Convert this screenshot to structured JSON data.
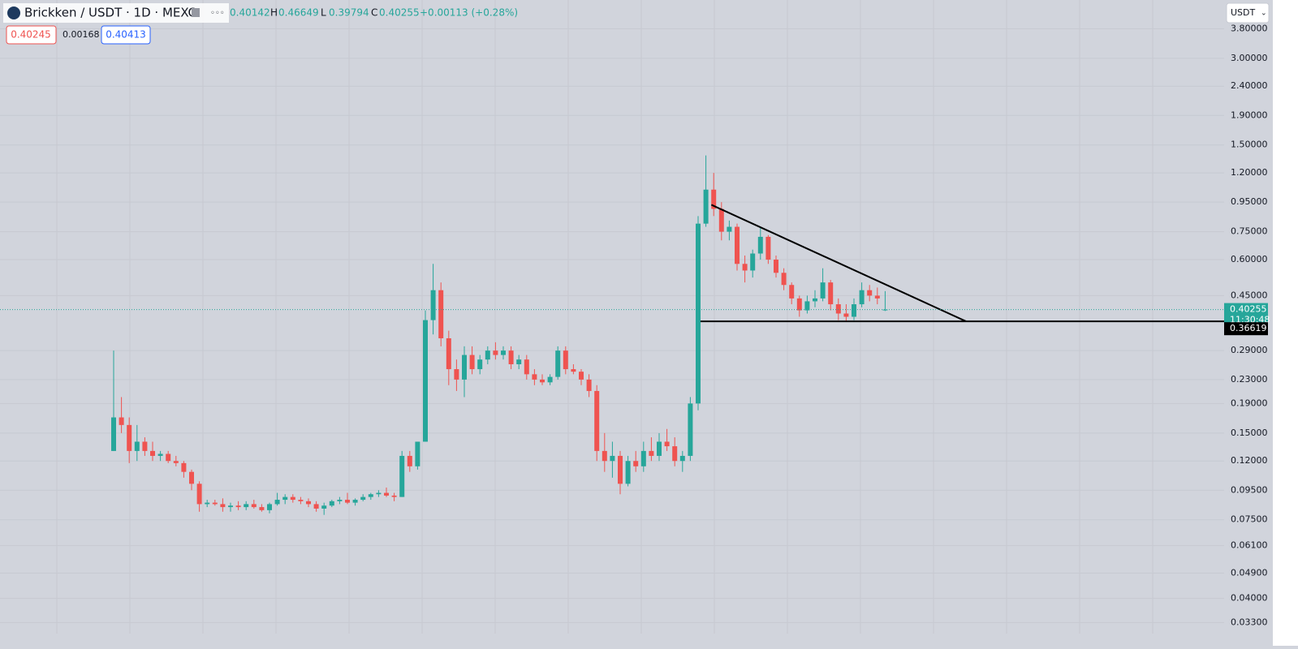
{
  "header": {
    "symbol": "Brickken / USDT · 1D · MEXC",
    "ohlc": [
      {
        "label": "H",
        "value": "0.46649"
      },
      {
        "label": "L",
        "value": "0.39794"
      },
      {
        "label": "C",
        "value": "0.40255"
      }
    ],
    "open": "0.40142",
    "change": "+0.00113 (+0.28%)",
    "bid": "0.40245",
    "spread": "0.00168",
    "ask": "0.40413",
    "currency": "USDT"
  },
  "chart_data": {
    "type": "candlestick",
    "log_scale": true,
    "grid": true,
    "up_color": "#26a69a",
    "down_color": "#ef5350",
    "ylim": [
      0.0302,
      4.78
    ],
    "yticks": [
      {
        "value": 3.8,
        "label": "3.80000"
      },
      {
        "value": 3.0,
        "label": "3.00000"
      },
      {
        "value": 2.4,
        "label": "2.40000"
      },
      {
        "value": 1.9,
        "label": "1.90000"
      },
      {
        "value": 1.5,
        "label": "1.50000"
      },
      {
        "value": 1.2,
        "label": "1.20000"
      },
      {
        "value": 0.95,
        "label": "0.95000"
      },
      {
        "value": 0.75,
        "label": "0.75000"
      },
      {
        "value": 0.6,
        "label": "0.60000"
      },
      {
        "value": 0.45,
        "label": "0.45000"
      },
      {
        "value": 0.29,
        "label": "0.29000"
      },
      {
        "value": 0.23,
        "label": "0.23000"
      },
      {
        "value": 0.19,
        "label": "0.19000"
      },
      {
        "value": 0.15,
        "label": "0.15000"
      },
      {
        "value": 0.12,
        "label": "0.12000"
      },
      {
        "value": 0.095,
        "label": "0.09500"
      },
      {
        "value": 0.075,
        "label": "0.07500"
      },
      {
        "value": 0.061,
        "label": "0.06100"
      },
      {
        "value": 0.049,
        "label": "0.04900"
      },
      {
        "value": 0.04,
        "label": "0.04000"
      },
      {
        "value": 0.033,
        "label": "0.03300"
      }
    ],
    "ohlc": [
      [
        0.13,
        0.29,
        0.13,
        0.17
      ],
      [
        0.17,
        0.2,
        0.15,
        0.16
      ],
      [
        0.16,
        0.17,
        0.118,
        0.13
      ],
      [
        0.13,
        0.16,
        0.12,
        0.14
      ],
      [
        0.14,
        0.145,
        0.125,
        0.13
      ],
      [
        0.13,
        0.14,
        0.12,
        0.125
      ],
      [
        0.125,
        0.13,
        0.12,
        0.127
      ],
      [
        0.127,
        0.13,
        0.118,
        0.12
      ],
      [
        0.12,
        0.125,
        0.115,
        0.118
      ],
      [
        0.118,
        0.12,
        0.105,
        0.11
      ],
      [
        0.11,
        0.112,
        0.095,
        0.1
      ],
      [
        0.1,
        0.102,
        0.08,
        0.085
      ],
      [
        0.085,
        0.088,
        0.083,
        0.086
      ],
      [
        0.086,
        0.088,
        0.084,
        0.085
      ],
      [
        0.085,
        0.089,
        0.08,
        0.083
      ],
      [
        0.083,
        0.086,
        0.08,
        0.084
      ],
      [
        0.084,
        0.087,
        0.081,
        0.083
      ],
      [
        0.083,
        0.087,
        0.081,
        0.085
      ],
      [
        0.085,
        0.088,
        0.082,
        0.083
      ],
      [
        0.083,
        0.085,
        0.08,
        0.081
      ],
      [
        0.081,
        0.086,
        0.079,
        0.085
      ],
      [
        0.085,
        0.093,
        0.084,
        0.088
      ],
      [
        0.088,
        0.092,
        0.085,
        0.09
      ],
      [
        0.09,
        0.092,
        0.086,
        0.088
      ],
      [
        0.088,
        0.09,
        0.085,
        0.087
      ],
      [
        0.087,
        0.089,
        0.083,
        0.085
      ],
      [
        0.085,
        0.087,
        0.08,
        0.082
      ],
      [
        0.082,
        0.086,
        0.078,
        0.084
      ],
      [
        0.084,
        0.088,
        0.083,
        0.087
      ],
      [
        0.087,
        0.09,
        0.085,
        0.088
      ],
      [
        0.088,
        0.093,
        0.085,
        0.086
      ],
      [
        0.086,
        0.089,
        0.084,
        0.088
      ],
      [
        0.088,
        0.092,
        0.087,
        0.09
      ],
      [
        0.09,
        0.093,
        0.088,
        0.092
      ],
      [
        0.092,
        0.095,
        0.09,
        0.093
      ],
      [
        0.093,
        0.097,
        0.09,
        0.091
      ],
      [
        0.091,
        0.093,
        0.087,
        0.09
      ],
      [
        0.09,
        0.13,
        0.09,
        0.125
      ],
      [
        0.125,
        0.13,
        0.11,
        0.115
      ],
      [
        0.115,
        0.14,
        0.112,
        0.14
      ],
      [
        0.14,
        0.4,
        0.14,
        0.37
      ],
      [
        0.37,
        0.58,
        0.33,
        0.47
      ],
      [
        0.47,
        0.5,
        0.3,
        0.32
      ],
      [
        0.32,
        0.34,
        0.22,
        0.25
      ],
      [
        0.25,
        0.27,
        0.21,
        0.23
      ],
      [
        0.23,
        0.3,
        0.2,
        0.28
      ],
      [
        0.28,
        0.3,
        0.24,
        0.25
      ],
      [
        0.25,
        0.28,
        0.24,
        0.27
      ],
      [
        0.27,
        0.3,
        0.26,
        0.29
      ],
      [
        0.29,
        0.31,
        0.27,
        0.28
      ],
      [
        0.28,
        0.3,
        0.27,
        0.29
      ],
      [
        0.29,
        0.3,
        0.25,
        0.26
      ],
      [
        0.26,
        0.28,
        0.25,
        0.27
      ],
      [
        0.27,
        0.28,
        0.23,
        0.24
      ],
      [
        0.24,
        0.25,
        0.22,
        0.23
      ],
      [
        0.23,
        0.24,
        0.22,
        0.225
      ],
      [
        0.225,
        0.24,
        0.22,
        0.235
      ],
      [
        0.235,
        0.3,
        0.23,
        0.29
      ],
      [
        0.29,
        0.3,
        0.24,
        0.25
      ],
      [
        0.25,
        0.26,
        0.24,
        0.245
      ],
      [
        0.245,
        0.25,
        0.22,
        0.23
      ],
      [
        0.23,
        0.24,
        0.2,
        0.21
      ],
      [
        0.21,
        0.22,
        0.12,
        0.13
      ],
      [
        0.13,
        0.15,
        0.11,
        0.12
      ],
      [
        0.12,
        0.14,
        0.105,
        0.125
      ],
      [
        0.125,
        0.13,
        0.092,
        0.1
      ],
      [
        0.1,
        0.125,
        0.098,
        0.12
      ],
      [
        0.12,
        0.13,
        0.11,
        0.115
      ],
      [
        0.115,
        0.14,
        0.11,
        0.13
      ],
      [
        0.13,
        0.145,
        0.12,
        0.125
      ],
      [
        0.125,
        0.15,
        0.12,
        0.14
      ],
      [
        0.14,
        0.155,
        0.13,
        0.135
      ],
      [
        0.135,
        0.145,
        0.115,
        0.12
      ],
      [
        0.12,
        0.13,
        0.11,
        0.125
      ],
      [
        0.125,
        0.2,
        0.12,
        0.19
      ],
      [
        0.19,
        0.85,
        0.18,
        0.8
      ],
      [
        0.8,
        1.38,
        0.78,
        1.05
      ],
      [
        1.05,
        1.2,
        0.85,
        0.9
      ],
      [
        0.9,
        0.95,
        0.7,
        0.75
      ],
      [
        0.75,
        0.82,
        0.7,
        0.78
      ],
      [
        0.78,
        0.8,
        0.55,
        0.58
      ],
      [
        0.58,
        0.62,
        0.5,
        0.55
      ],
      [
        0.55,
        0.65,
        0.52,
        0.63
      ],
      [
        0.63,
        0.78,
        0.6,
        0.72
      ],
      [
        0.72,
        0.73,
        0.58,
        0.6
      ],
      [
        0.6,
        0.62,
        0.52,
        0.54
      ],
      [
        0.54,
        0.56,
        0.47,
        0.49
      ],
      [
        0.49,
        0.5,
        0.42,
        0.44
      ],
      [
        0.44,
        0.45,
        0.38,
        0.4
      ],
      [
        0.4,
        0.45,
        0.39,
        0.43
      ],
      [
        0.43,
        0.47,
        0.41,
        0.44
      ],
      [
        0.44,
        0.56,
        0.43,
        0.5
      ],
      [
        0.5,
        0.51,
        0.4,
        0.42
      ],
      [
        0.42,
        0.44,
        0.37,
        0.39
      ],
      [
        0.39,
        0.42,
        0.365,
        0.38
      ],
      [
        0.38,
        0.44,
        0.37,
        0.42
      ],
      [
        0.42,
        0.5,
        0.41,
        0.47
      ],
      [
        0.47,
        0.49,
        0.43,
        0.45
      ],
      [
        0.45,
        0.48,
        0.42,
        0.44
      ],
      [
        0.40142,
        0.46649,
        0.39794,
        0.40255
      ]
    ],
    "last_price": 0.40255,
    "countdown": "11:30:48",
    "trendline": {
      "from": [
        76.7,
        0.93
      ],
      "to": [
        109.4,
        0.36619
      ]
    },
    "horizontal_line": {
      "from": 75.3,
      "price": 0.36619
    }
  }
}
